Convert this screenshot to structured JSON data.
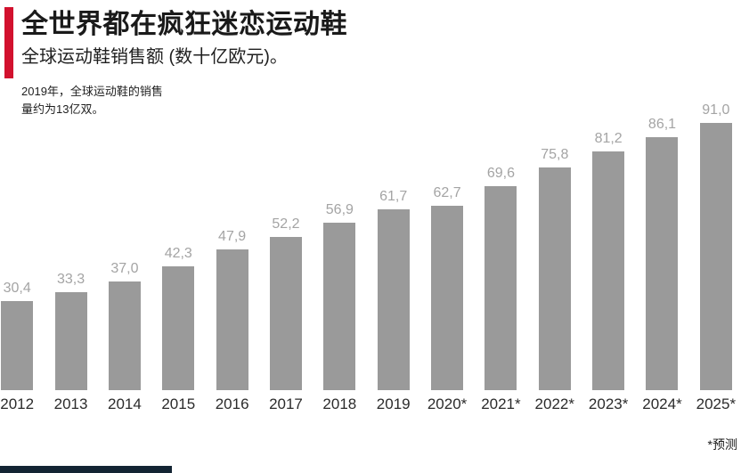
{
  "header": {
    "title": "全世界都在疯狂迷恋运动鞋",
    "subtitle": "全球运动鞋销售额 (数十亿欧元)。",
    "accent_color": "#d2112e"
  },
  "annotation": {
    "line1": "2019年，全球运动鞋的销售",
    "line2": "量约为13亿双。"
  },
  "chart_data": {
    "type": "bar",
    "title": "全球运动鞋销售额 (数十亿欧元)",
    "unit": "数十亿欧元",
    "categories": [
      "2012",
      "2013",
      "2014",
      "2015",
      "2016",
      "2017",
      "2018",
      "2019",
      "2020*",
      "2021*",
      "2022*",
      "2023*",
      "2024*",
      "2025*"
    ],
    "values": [
      30.4,
      33.3,
      37.0,
      42.3,
      47.9,
      52.2,
      56.9,
      61.7,
      62.7,
      69.6,
      75.8,
      81.2,
      86.1,
      91.0
    ],
    "value_labels": [
      "30,4",
      "33,3",
      "37,0",
      "42,3",
      "47,9",
      "52,2",
      "56,9",
      "61,7",
      "62,7",
      "69,6",
      "75,8",
      "81,2",
      "86,1",
      "91,0"
    ],
    "ylim": [
      0,
      91
    ],
    "grid": false,
    "legend": false,
    "bar_color": "#9a9a9a",
    "value_label_color": "#a4a4a4",
    "axis_label_color": "#2b2b2b"
  },
  "footnote": "*预测",
  "footer": {
    "strip_color": "#132433"
  }
}
